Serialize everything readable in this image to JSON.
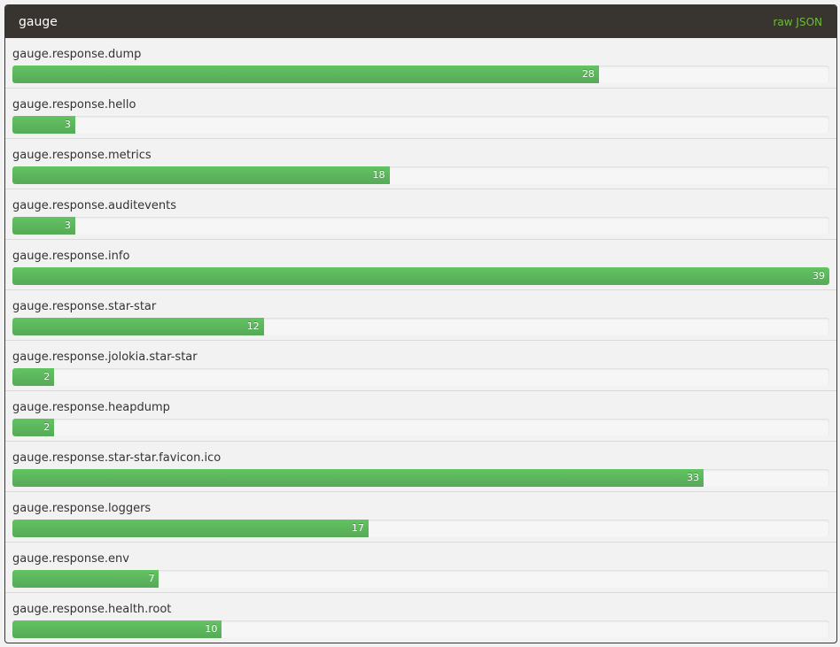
{
  "panel": {
    "title": "gauge",
    "raw_link_label": "raw JSON"
  },
  "colors": {
    "header_bg": "#38342f",
    "bar_green": "#5cb85c",
    "link_green": "#6dbb3a"
  },
  "metrics": [
    {
      "name": "gauge.response.dump",
      "value": 28
    },
    {
      "name": "gauge.response.hello",
      "value": 3
    },
    {
      "name": "gauge.response.metrics",
      "value": 18
    },
    {
      "name": "gauge.response.auditevents",
      "value": 3
    },
    {
      "name": "gauge.response.info",
      "value": 39
    },
    {
      "name": "gauge.response.star-star",
      "value": 12
    },
    {
      "name": "gauge.response.jolokia.star-star",
      "value": 2
    },
    {
      "name": "gauge.response.heapdump",
      "value": 2
    },
    {
      "name": "gauge.response.star-star.favicon.ico",
      "value": 33
    },
    {
      "name": "gauge.response.loggers",
      "value": 17
    },
    {
      "name": "gauge.response.env",
      "value": 7
    },
    {
      "name": "gauge.response.health.root",
      "value": 10
    }
  ],
  "chart_data": {
    "type": "bar",
    "categories": [
      "gauge.response.dump",
      "gauge.response.hello",
      "gauge.response.metrics",
      "gauge.response.auditevents",
      "gauge.response.info",
      "gauge.response.star-star",
      "gauge.response.jolokia.star-star",
      "gauge.response.heapdump",
      "gauge.response.star-star.favicon.ico",
      "gauge.response.loggers",
      "gauge.response.env",
      "gauge.response.health.root"
    ],
    "values": [
      28,
      3,
      18,
      3,
      39,
      12,
      2,
      2,
      33,
      17,
      7,
      10
    ],
    "title": "gauge",
    "xlim": [
      0,
      39
    ]
  }
}
